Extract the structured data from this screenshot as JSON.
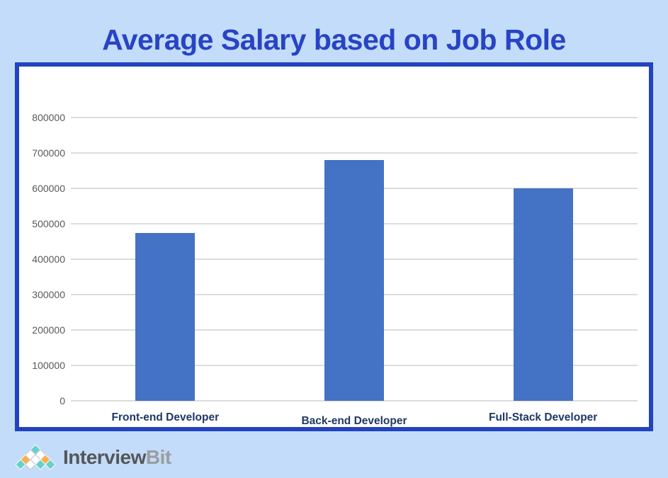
{
  "page": {
    "title": "Average Salary based on Job Role"
  },
  "chart_data": {
    "type": "bar",
    "title": "Average Salary based on Job Role",
    "categories": [
      "Front-end Developer",
      "Back-end Developer",
      "Full-Stack Developer"
    ],
    "values": [
      475000,
      680000,
      600000
    ],
    "xlabel": "",
    "ylabel": "",
    "ylim": [
      0,
      800000
    ],
    "ytick_step": 100000,
    "yticks": [
      0,
      100000,
      200000,
      300000,
      400000,
      500000,
      600000,
      700000,
      800000
    ],
    "grid": true,
    "legend": "none",
    "bar_color": "#4472c4"
  },
  "colors": {
    "background": "#c3dcf9",
    "panel_background": "#ffffff",
    "panel_border": "#2342c0",
    "title_text": "#2843c4",
    "bar": "#4472c4",
    "gridline": "#dcdcdc",
    "y_tick_text": "#595959",
    "x_tick_text": "#1f3864"
  },
  "logo": {
    "text_primary": "Interview",
    "text_secondary": "Bit",
    "pyramid_rows": [
      [
        "teal"
      ],
      [
        "white",
        "white"
      ],
      [
        "orange",
        "white",
        "orange"
      ],
      [
        "teal",
        "white",
        "teal",
        "teal"
      ]
    ],
    "palette": {
      "teal": "#66d1ca",
      "orange": "#f7b154",
      "white": "#ffffff"
    }
  }
}
